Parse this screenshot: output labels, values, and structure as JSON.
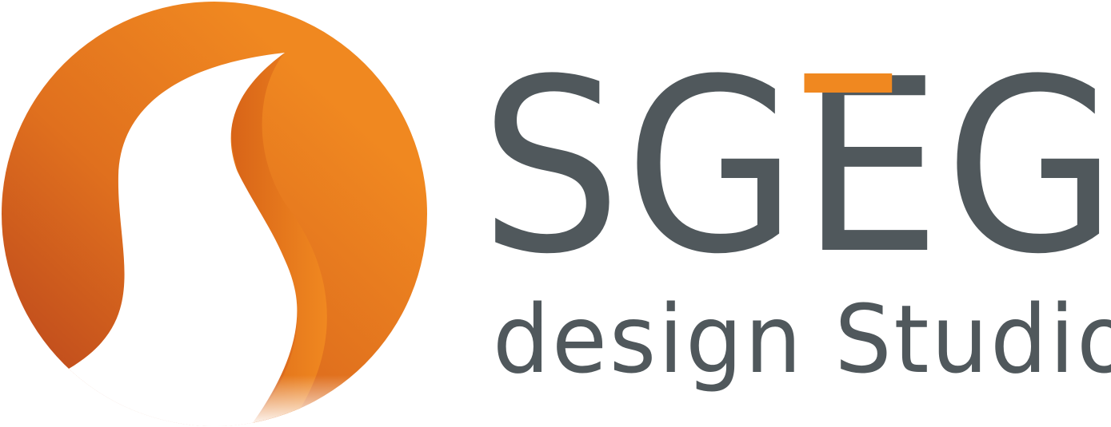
{
  "brand": {
    "name_part1": "SG",
    "name_accent_letter": "E",
    "name_part2": "G",
    "tagline": "design Studio"
  },
  "colors": {
    "orange_light": "#F08820",
    "orange_dark": "#B5401C",
    "text_dark": "#50585C",
    "background": "#FFFFFF"
  },
  "icons": {
    "logo_mark": "orange-circle-with-white-s-road"
  }
}
